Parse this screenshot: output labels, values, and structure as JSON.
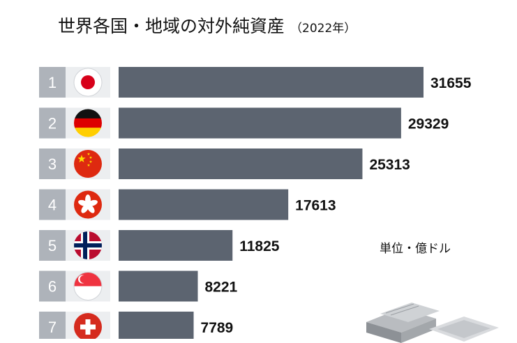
{
  "header": {
    "title": "世界各国・地域の対外純資産",
    "year": "（2022年）"
  },
  "unit_label": "単位・億ドル",
  "chart_data": {
    "type": "bar",
    "orientation": "horizontal",
    "title": "世界各国・地域の対外純資産（2022年）",
    "unit": "単位・億ドル",
    "categories": [
      "1",
      "2",
      "3",
      "4",
      "5",
      "6",
      "7"
    ],
    "flags": [
      "japan-flag-icon",
      "germany-flag-icon",
      "china-flag-icon",
      "hong-kong-flag-icon",
      "norway-flag-icon",
      "singapore-flag-icon",
      "switzerland-flag-icon"
    ],
    "values": [
      31655,
      29329,
      25313,
      17613,
      11825,
      8221,
      7789
    ],
    "xlim": [
      0,
      31655
    ],
    "grid": false,
    "colors": {
      "bar": "#5c6470",
      "rank_box": "#aeb3ba",
      "rank_text": "#ffffff",
      "flag_bg": "#eceef0"
    }
  }
}
